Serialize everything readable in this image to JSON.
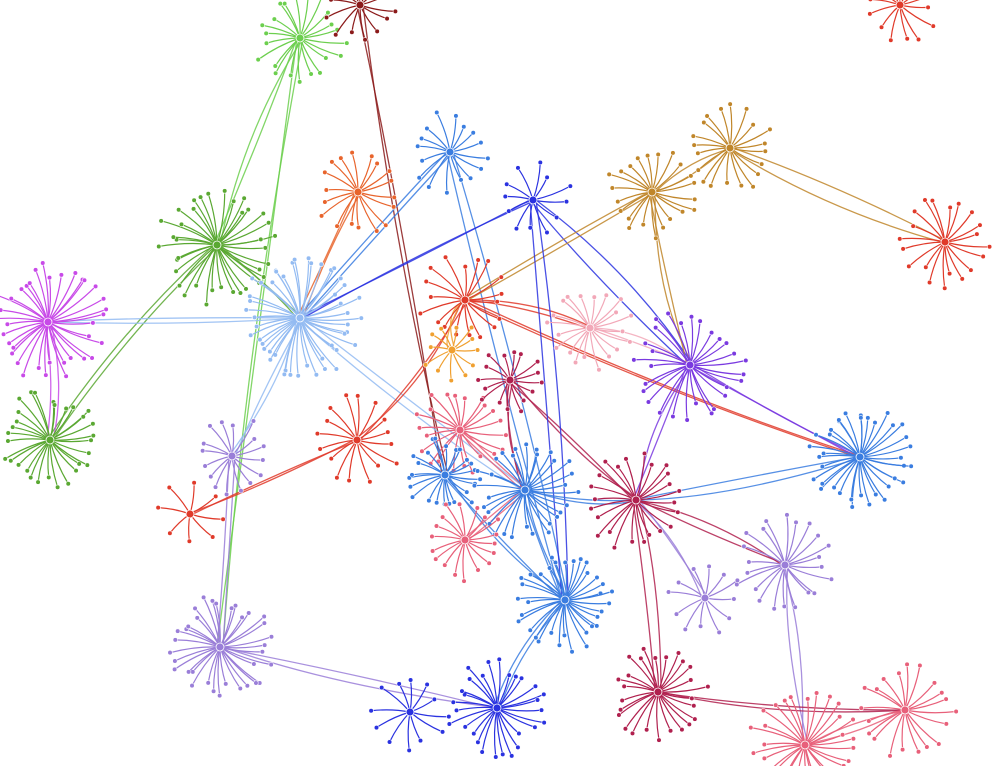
{
  "graph": {
    "type": "force-directed network",
    "labels_shown": false,
    "colors": {
      "green": "#6ccf4e",
      "darkgreen": "#5aa832",
      "darkred": "#8b1a1a",
      "orange": "#e8642c",
      "blue": "#3a7de0",
      "darkblue": "#2a32e0",
      "gold": "#c0862a",
      "lightblue": "#93bbf2",
      "magenta": "#c84ae8",
      "red": "#e03a2a",
      "pink": "#f2a8b8",
      "purple": "#7a3ae0",
      "lavender": "#9a7ed8",
      "salmon": "#e8607a",
      "crimson": "#b0204e",
      "amber": "#f0a030"
    },
    "hubs": [
      {
        "id": 0,
        "color": "green",
        "leaves": 22
      },
      {
        "id": 1,
        "color": "darkred",
        "leaves": 14
      },
      {
        "id": 2,
        "color": "orange",
        "leaves": 18
      },
      {
        "id": 3,
        "color": "blue",
        "leaves": 16
      },
      {
        "id": 4,
        "color": "darkblue",
        "leaves": 12
      },
      {
        "id": 5,
        "color": "gold",
        "leaves": 22
      },
      {
        "id": 6,
        "color": "gold",
        "leaves": 20
      },
      {
        "id": 7,
        "color": "darkgreen",
        "leaves": 36
      },
      {
        "id": 8,
        "color": "lightblue",
        "leaves": 48
      },
      {
        "id": 9,
        "color": "magenta",
        "leaves": 36
      },
      {
        "id": 10,
        "color": "darkgreen",
        "leaves": 30
      },
      {
        "id": 11,
        "color": "red",
        "leaves": 18
      },
      {
        "id": 12,
        "color": "pink",
        "leaves": 20
      },
      {
        "id": 13,
        "color": "purple",
        "leaves": 28
      },
      {
        "id": 14,
        "color": "red",
        "leaves": 20
      },
      {
        "id": 15,
        "color": "red",
        "leaves": 14
      },
      {
        "id": 16,
        "color": "blue",
        "leaves": 36
      },
      {
        "id": 17,
        "color": "lavender",
        "leaves": 16
      },
      {
        "id": 18,
        "color": "red",
        "leaves": 16
      },
      {
        "id": 19,
        "color": "red",
        "leaves": 8
      },
      {
        "id": 20,
        "color": "salmon",
        "leaves": 22
      },
      {
        "id": 21,
        "color": "blue",
        "leaves": 24
      },
      {
        "id": 22,
        "color": "blue",
        "leaves": 30
      },
      {
        "id": 23,
        "color": "crimson",
        "leaves": 24
      },
      {
        "id": 24,
        "color": "salmon",
        "leaves": 18
      },
      {
        "id": 25,
        "color": "blue",
        "leaves": 34
      },
      {
        "id": 26,
        "color": "lavender",
        "leaves": 22
      },
      {
        "id": 27,
        "color": "lavender",
        "leaves": 12
      },
      {
        "id": 28,
        "color": "lavender",
        "leaves": 34
      },
      {
        "id": 29,
        "color": "darkblue",
        "leaves": 12
      },
      {
        "id": 30,
        "color": "darkblue",
        "leaves": 28
      },
      {
        "id": 31,
        "color": "crimson",
        "leaves": 26
      },
      {
        "id": 32,
        "color": "salmon",
        "leaves": 30
      },
      {
        "id": 33,
        "color": "salmon",
        "leaves": 20
      },
      {
        "id": 34,
        "color": "amber",
        "leaves": 12
      },
      {
        "id": 35,
        "color": "crimson",
        "leaves": 16
      }
    ],
    "edges": [
      [
        0,
        7
      ],
      [
        0,
        28
      ],
      [
        1,
        21
      ],
      [
        2,
        8
      ],
      [
        3,
        8
      ],
      [
        3,
        25
      ],
      [
        4,
        13
      ],
      [
        4,
        8
      ],
      [
        5,
        6
      ],
      [
        5,
        11
      ],
      [
        5,
        13
      ],
      [
        6,
        14
      ],
      [
        7,
        8
      ],
      [
        7,
        10
      ],
      [
        8,
        9
      ],
      [
        8,
        17
      ],
      [
        8,
        22
      ],
      [
        11,
        12
      ],
      [
        11,
        16
      ],
      [
        11,
        18
      ],
      [
        12,
        13
      ],
      [
        13,
        16
      ],
      [
        13,
        23
      ],
      [
        16,
        23
      ],
      [
        17,
        28
      ],
      [
        18,
        19
      ],
      [
        20,
        22
      ],
      [
        21,
        25
      ],
      [
        22,
        25
      ],
      [
        23,
        31
      ],
      [
        23,
        26
      ],
      [
        25,
        30
      ],
      [
        26,
        32
      ],
      [
        27,
        23
      ],
      [
        28,
        30
      ],
      [
        31,
        33
      ],
      [
        32,
        33
      ],
      [
        34,
        11
      ],
      [
        35,
        22
      ],
      [
        35,
        23
      ],
      [
        24,
        22
      ],
      [
        9,
        10
      ],
      [
        4,
        25
      ],
      [
        22,
        23
      ]
    ]
  }
}
